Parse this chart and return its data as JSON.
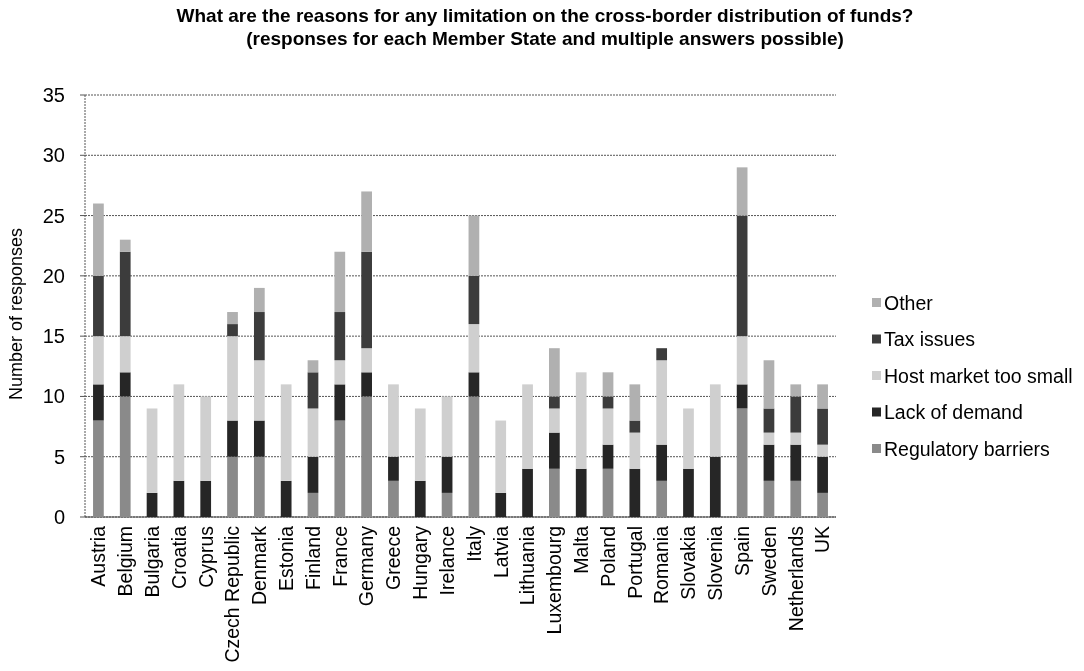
{
  "chart_data": {
    "type": "bar",
    "stacked": true,
    "title": "What are the reasons for any limitation on the cross-border distribution of funds?",
    "subtitle": "(responses for each Member State and multiple answers possible)",
    "ylabel": "Number of responses",
    "categories": [
      "Austria",
      "Belgium",
      "Bulgaria",
      "Croatia",
      "Cyprus",
      "Czech Republic",
      "Denmark",
      "Estonia",
      "Finland",
      "France",
      "Germany",
      "Greece",
      "Hungary",
      "Irelance",
      "Italy",
      "Latvia",
      "Lithuania",
      "Luxembourg",
      "Malta",
      "Poland",
      "Portugal",
      "Romania",
      "Slovakia",
      "Slovenia",
      "Spain",
      "Sweden",
      "Netherlands",
      "UK"
    ],
    "series": [
      {
        "name": "Regulatory barriers",
        "color": "#8a8a8a",
        "values": [
          8,
          10,
          0,
          0,
          0,
          5,
          5,
          0,
          2,
          8,
          10,
          3,
          0,
          2,
          10,
          0,
          0,
          4,
          0,
          4,
          0,
          3,
          0,
          0,
          9,
          3,
          3,
          2
        ]
      },
      {
        "name": "Lack of demand",
        "color": "#262626",
        "values": [
          3,
          2,
          2,
          3,
          3,
          3,
          3,
          3,
          3,
          3,
          2,
          2,
          3,
          3,
          2,
          2,
          4,
          3,
          4,
          2,
          4,
          3,
          4,
          5,
          2,
          3,
          3,
          3
        ]
      },
      {
        "name": "Host market too small",
        "color": "#cfcfcf",
        "values": [
          4,
          3,
          7,
          8,
          7,
          7,
          5,
          8,
          4,
          2,
          2,
          6,
          6,
          5,
          4,
          6,
          7,
          2,
          8,
          3,
          3,
          7,
          5,
          6,
          4,
          1,
          1,
          1
        ]
      },
      {
        "name": "Tax issues",
        "color": "#3c3c3c",
        "values": [
          5,
          7,
          0,
          0,
          0,
          1,
          4,
          0,
          3,
          4,
          8,
          0,
          0,
          0,
          4,
          0,
          0,
          1,
          0,
          1,
          1,
          1,
          0,
          0,
          10,
          2,
          3,
          3
        ]
      },
      {
        "name": "Other",
        "color": "#b0b0b0",
        "values": [
          6,
          1,
          0,
          0,
          0,
          1,
          2,
          0,
          1,
          5,
          5,
          0,
          0,
          0,
          5,
          0,
          0,
          4,
          0,
          2,
          3,
          0,
          0,
          0,
          4,
          4,
          1,
          2
        ]
      }
    ],
    "ylim": [
      0,
      35
    ],
    "yticks": [
      0,
      5,
      10,
      15,
      20,
      25,
      30,
      35
    ],
    "grid": "y",
    "legend": "right"
  }
}
